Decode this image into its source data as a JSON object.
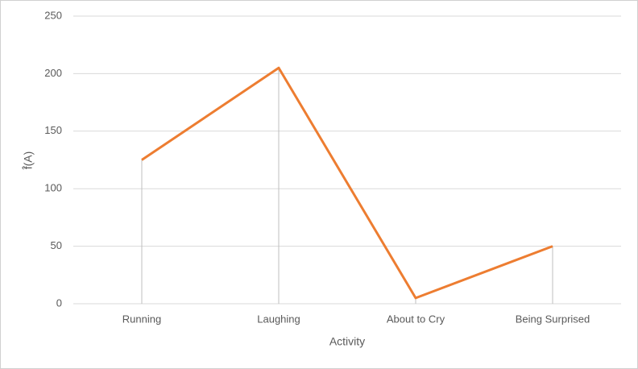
{
  "chart_data": {
    "type": "line",
    "x_label": "Activity",
    "y_label": "f̂(A)",
    "categories": [
      "Running",
      "Laughing",
      "About to Cry",
      "Being Surprised"
    ],
    "series": [
      {
        "color": "#ed7d31",
        "values": [
          125,
          205,
          5,
          50
        ]
      }
    ],
    "ylim": [
      0,
      250
    ],
    "yticks": [
      0,
      50,
      100,
      150,
      200,
      250
    ],
    "grid": true,
    "drop_lines": true
  }
}
